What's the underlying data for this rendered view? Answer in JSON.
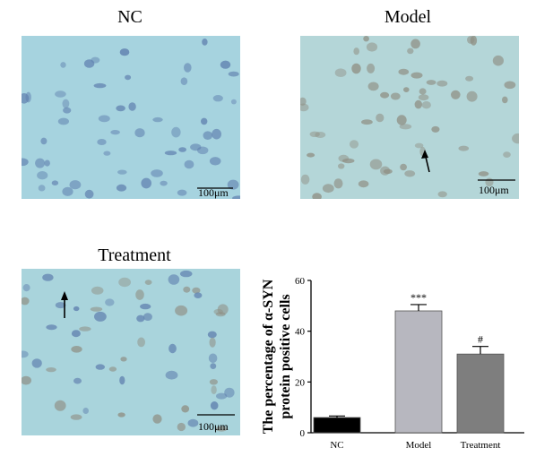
{
  "panels": [
    {
      "title": "NC",
      "scale_bar": "100μm",
      "arrow": false
    },
    {
      "title": "Model",
      "scale_bar": "100μm",
      "arrow": true
    },
    {
      "title": "Treatment",
      "scale_bar": "100μm",
      "arrow": true
    }
  ],
  "colors": {
    "tissue": "#a6d3df",
    "nucleus": "#5f7fae",
    "bar_nc": "#000000",
    "bar_model": "#b7b7bf",
    "bar_treatment": "#7e7e7e"
  },
  "chart_data": {
    "type": "bar",
    "categories": [
      "NC",
      "Model",
      "Treatment"
    ],
    "values": [
      6,
      48,
      31
    ],
    "errors": [
      0.6,
      2.5,
      3.0
    ],
    "annotations": [
      "",
      "***",
      "#"
    ],
    "ylabel_line1": "The percentage of α-SYN",
    "ylabel_line2": "protein positive cells",
    "ylim": [
      0,
      60
    ],
    "yticks": [
      0,
      20,
      40,
      60
    ]
  }
}
